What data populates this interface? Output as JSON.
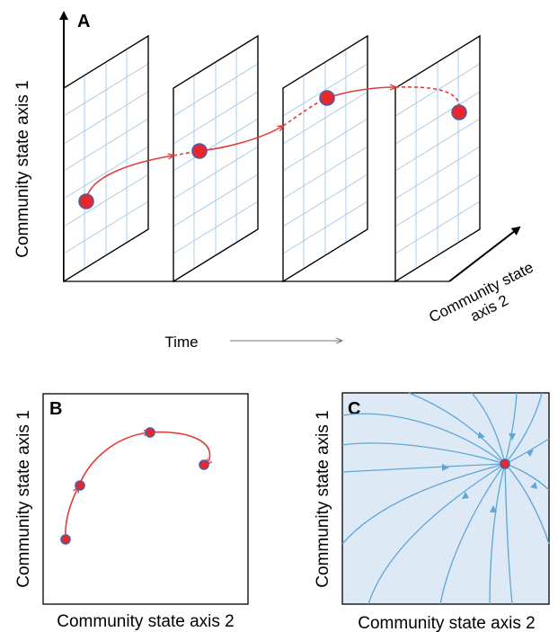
{
  "panel_a": {
    "letter": "A",
    "y_axis_label": "Community state axis 1",
    "depth_axis_label_line1": "Community state",
    "depth_axis_label_line2": "axis 2",
    "time_label": "Time"
  },
  "panel_b": {
    "letter": "B",
    "y_axis_label": "Community state axis 1",
    "x_axis_label": "Community state axis 2"
  },
  "panel_c": {
    "letter": "C",
    "y_axis_label": "Community state axis 1",
    "x_axis_label": "Community state axis 2",
    "background_color": "#ddeaf6"
  },
  "colors": {
    "trajectory": "#e23b3b",
    "state_point": "#e8262b",
    "state_point_outline": "#4c5fa3",
    "grid": "#a9cbe8",
    "flow_lines": "#5ea6d6"
  }
}
